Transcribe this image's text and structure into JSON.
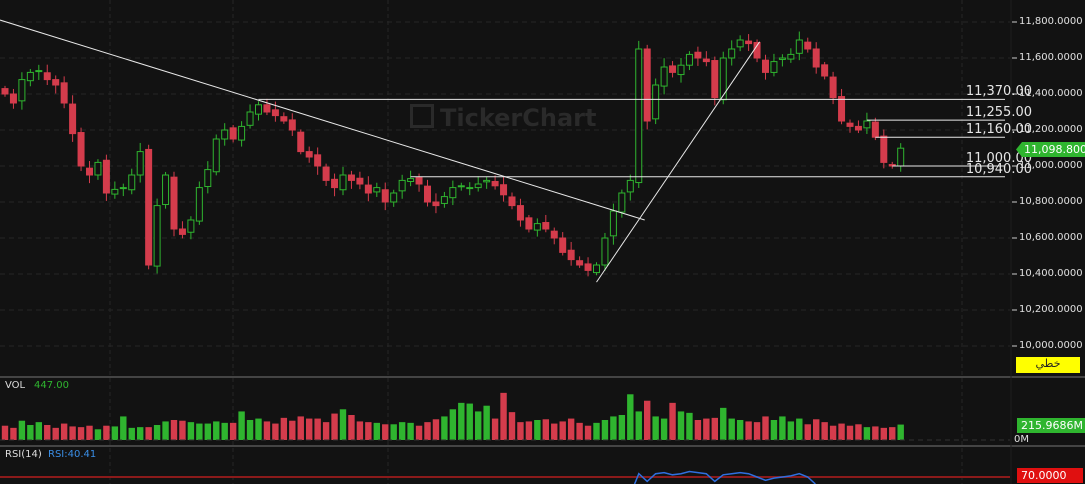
{
  "watermark": "TickerChart",
  "colors": {
    "up": "#2fb52f",
    "down": "#d43c4c",
    "background": "#121212",
    "line": "#e8e8e8",
    "rsi": "#2f6fe0",
    "rsi_level": "#8b1a1a"
  },
  "chart_data": {
    "type": "candlestick",
    "price_axis": {
      "min": 10000,
      "max": 11800,
      "ticks": [
        "11,800.0000",
        "11,600.0000",
        "11,400.0000",
        "11,200.0000",
        "11,000.0000",
        "10,800.0000",
        "10,600.0000",
        "10,400.0000",
        "10,200.0000",
        "10,000.0000"
      ],
      "tick_values": [
        11800,
        11600,
        11400,
        11200,
        11000,
        10800,
        10600,
        10400,
        10200,
        10000
      ]
    },
    "grid": true,
    "last_price": "11,098.8000",
    "chart_type_label": "خطي",
    "closes": [
      11400,
      11350,
      11480,
      11520,
      11530,
      11480,
      11450,
      11350,
      11180,
      11000,
      10950,
      11020,
      10850,
      10870,
      10880,
      10950,
      11080,
      10450,
      10780,
      10950,
      10650,
      10620,
      10700,
      10880,
      10980,
      11150,
      11200,
      11150,
      11220,
      11300,
      11340,
      11300,
      11280,
      11250,
      11200,
      11080,
      11050,
      11000,
      10920,
      10880,
      10950,
      10920,
      10900,
      10850,
      10880,
      10800,
      10850,
      10920,
      10930,
      10900,
      10800,
      10780,
      10830,
      10880,
      10890,
      10880,
      10900,
      10920,
      10890,
      10840,
      10780,
      10700,
      10650,
      10680,
      10650,
      10600,
      10520,
      10480,
      10450,
      10420,
      10450,
      10600,
      10750,
      10850,
      10920,
      11650,
      11250,
      11450,
      11550,
      11520,
      11560,
      11620,
      11600,
      11580,
      11380,
      11600,
      11650,
      11700,
      11680,
      11600,
      11520,
      11580,
      11600,
      11620,
      11700,
      11650,
      11550,
      11500,
      11380,
      11250,
      11220,
      11200,
      11250,
      11160,
      11020,
      11000,
      11099
    ],
    "horizontal_lines": [
      {
        "price": 11370,
        "label": "11,370.00",
        "from_index": 30
      },
      {
        "price": 11255,
        "label": "11,255.00",
        "from_index": 102
      },
      {
        "price": 11160,
        "label": "11,160.00",
        "from_index": 103
      },
      {
        "price": 11000,
        "label": "11,000.00",
        "from_index": 105
      },
      {
        "price": 10940,
        "label": "10,940.00",
        "from_index": 48
      }
    ],
    "trend_lines": [
      {
        "from": {
          "index": -0.6,
          "price": 11811
        },
        "to": {
          "index": 75.7,
          "price": 10700
        }
      },
      {
        "from": {
          "index": 70,
          "price": 10355
        },
        "to": {
          "index": 89.3,
          "price": 11690
        }
      }
    ],
    "volume": {
      "label": "VOL",
      "value": "447.00",
      "last": "215.9686M",
      "zero_label": "0M",
      "max": 700,
      "values": [
        200,
        170,
        270,
        210,
        250,
        210,
        170,
        230,
        190,
        180,
        200,
        150,
        200,
        190,
        330,
        170,
        180,
        180,
        210,
        260,
        280,
        270,
        250,
        230,
        230,
        260,
        240,
        240,
        400,
        280,
        300,
        260,
        230,
        310,
        270,
        330,
        300,
        300,
        250,
        370,
        430,
        350,
        260,
        250,
        240,
        220,
        220,
        250,
        240,
        200,
        250,
        290,
        330,
        430,
        520,
        510,
        400,
        480,
        300,
        660,
        390,
        250,
        260,
        280,
        290,
        230,
        260,
        300,
        240,
        200,
        240,
        280,
        330,
        350,
        640,
        400,
        550,
        330,
        300,
        520,
        400,
        380,
        280,
        300,
        310,
        450,
        300,
        280,
        260,
        250,
        330,
        280,
        330,
        260,
        300,
        220,
        290,
        250,
        200,
        230,
        200,
        220,
        180,
        190,
        170,
        180,
        216
      ]
    },
    "rsi": {
      "label": "RSI(14)",
      "value": "RSI:40.41",
      "level": "70.0000",
      "level_value": 70,
      "values": [
        55,
        54,
        58,
        60,
        60,
        57,
        55,
        51,
        45,
        40,
        38,
        41,
        36,
        37,
        38,
        41,
        46,
        32,
        42,
        47,
        39,
        38,
        41,
        46,
        50,
        55,
        57,
        55,
        57,
        60,
        61,
        59,
        58,
        56,
        54,
        50,
        49,
        47,
        45,
        44,
        46,
        45,
        44,
        43,
        44,
        42,
        44,
        46,
        46,
        45,
        42,
        41,
        43,
        45,
        45,
        45,
        46,
        46,
        45,
        43,
        41,
        38,
        36,
        37,
        36,
        35,
        32,
        31,
        30,
        29,
        31,
        38,
        45,
        50,
        54,
        73,
        66,
        73,
        74,
        72,
        73,
        75,
        74,
        73,
        66,
        72,
        73,
        74,
        73,
        70,
        67,
        69,
        70,
        71,
        73,
        70,
        63,
        61,
        55,
        48,
        47,
        46,
        49,
        45,
        40,
        39,
        40.41
      ]
    }
  }
}
